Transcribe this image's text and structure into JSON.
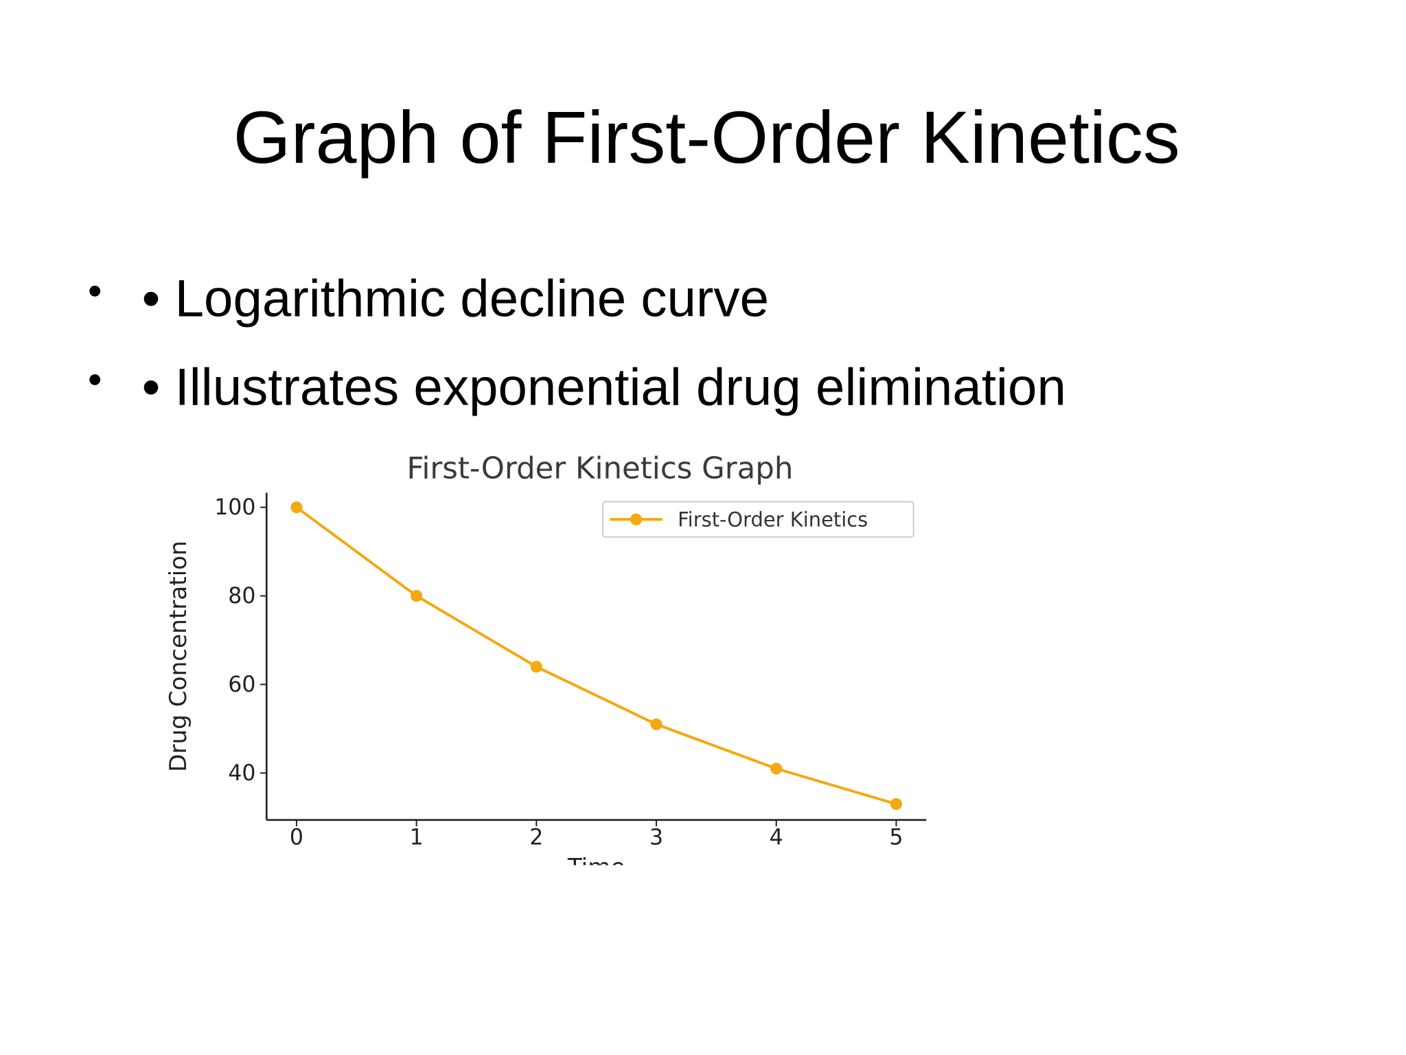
{
  "title": "Graph of First-Order Kinetics",
  "bullets": [
    "• Logarithmic decline curve",
    "• Illustrates exponential drug elimination"
  ],
  "chart_data": {
    "type": "line",
    "title": "First-Order Kinetics Graph",
    "x_label": "Time",
    "y_label": "Drug Concentration",
    "x": [
      0,
      1,
      2,
      3,
      4,
      5
    ],
    "series": [
      {
        "name": "First-Order Kinetics",
        "color": "#f5a80f",
        "values": [
          100,
          80,
          64,
          51,
          41,
          33
        ]
      }
    ],
    "xlim": [
      -0.25,
      5.25
    ],
    "xticks": [
      0,
      1,
      2,
      3,
      4,
      5
    ],
    "ylim": [
      29.4,
      103.3
    ],
    "yticks": [
      40,
      60,
      80,
      100
    ],
    "grid": false,
    "legend": "upper right"
  }
}
